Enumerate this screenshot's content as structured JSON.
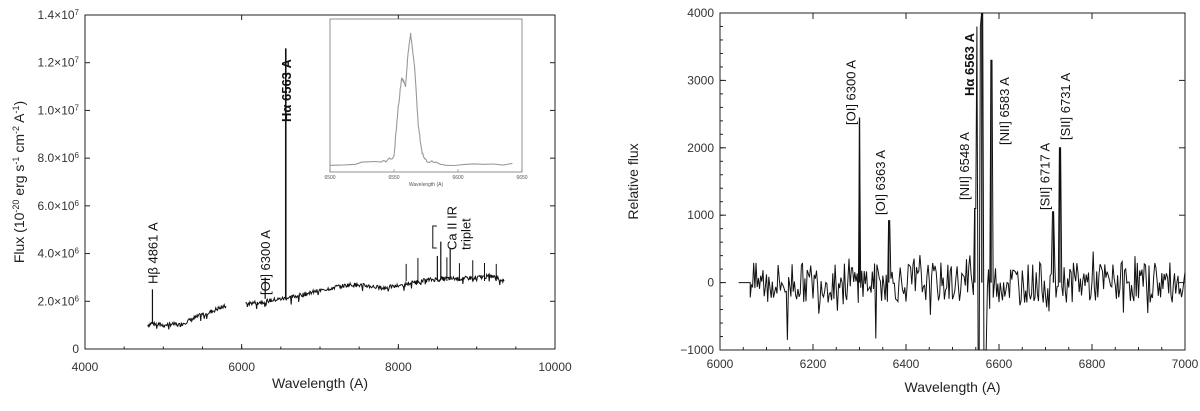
{
  "chart_data": [
    {
      "type": "line",
      "title": "",
      "xlabel": "Wavelength (A)",
      "ylabel": "Flux (10^-20 erg s^-1 cm^-2 A^-1)",
      "ylabel_parts": {
        "a": "Flux (10",
        "b": "-20",
        "c": " erg s",
        "d": "-1",
        "e": " cm",
        "f": "-2",
        "g": " A",
        "h": "-1",
        "i": ")"
      },
      "xlim": [
        4000,
        10000
      ],
      "ylim": [
        0,
        14000000
      ],
      "xticks": [
        4000,
        6000,
        8000,
        10000
      ],
      "xtick_labels": [
        "4000",
        "6000",
        "8000",
        "10000"
      ],
      "yticks": [
        0,
        2000000,
        4000000,
        6000000,
        8000000,
        10000000,
        12000000,
        14000000
      ],
      "ytick_labels": [
        {
          "m": "0",
          "e": ""
        },
        {
          "m": "2.0×10",
          "e": "6"
        },
        {
          "m": "4.0×10",
          "e": "6"
        },
        {
          "m": "6.0×10",
          "e": "6"
        },
        {
          "m": "8.0×10",
          "e": "6"
        },
        {
          "m": "1.0×10",
          "e": "7"
        },
        {
          "m": "1.2×10",
          "e": "7"
        },
        {
          "m": "1.4×10",
          "e": "7"
        }
      ],
      "series": [
        {
          "segments": [
            {
              "x": [
                4800,
                4860,
                4900,
                5000,
                5100,
                5200,
                5300,
                5400,
                5500,
                5600,
                5700,
                5800
              ],
              "y": [
                1000000,
                1100000,
                1050000,
                1000000,
                1050000,
                1000000,
                1150000,
                1300000,
                1450000,
                1550000,
                1700000,
                1800000
              ]
            },
            {
              "x": [
                6050,
                6200,
                6400,
                6600,
                6800,
                7000,
                7200,
                7400,
                7600,
                7800,
                8000,
                8200,
                8400,
                8600,
                8800,
                9000,
                9200,
                9350
              ],
              "y": [
                1900000,
                1950000,
                2050000,
                2150000,
                2300000,
                2450000,
                2600000,
                2700000,
                2650000,
                2550000,
                2650000,
                2800000,
                2900000,
                2950000,
                2950000,
                3000000,
                3050000,
                2850000
              ]
            }
          ]
        }
      ],
      "annotations": [
        {
          "text": "Hβ 4861 A",
          "x": 4861,
          "y": 2500000
        },
        {
          "text": "[OI] 6300 A",
          "x": 6300,
          "y": 2500000
        },
        {
          "text": "Hα 6563 A",
          "x": 6563,
          "y": 12600000
        },
        {
          "text": "Ca II IR",
          "x": 8500,
          "y": 4800000
        },
        {
          "text": "triplet",
          "x": 8500,
          "y": 4800000
        }
      ],
      "emission_peaks": [
        {
          "x": 4861,
          "y": 2500000
        },
        {
          "x": 6300,
          "y": 3000000
        },
        {
          "x": 6563,
          "y": 12600000
        },
        {
          "x": 8498,
          "y": 3900000
        },
        {
          "x": 8542,
          "y": 4500000
        },
        {
          "x": 8662,
          "y": 4200000
        }
      ],
      "inset": {
        "type": "line",
        "xlabel": "Wavelength (A)",
        "xlim": [
          6500,
          6650
        ],
        "xticks": [
          6500,
          6550,
          6600,
          6650
        ],
        "xtick_labels": [
          "6500",
          "6550",
          "6600",
          "6650"
        ],
        "x": [
          6500,
          6540,
          6550,
          6553,
          6556,
          6559,
          6561,
          6563,
          6566,
          6569,
          6572,
          6576,
          6590,
          6650
        ],
        "y": [
          0.05,
          0.06,
          0.1,
          0.4,
          0.62,
          0.56,
          0.78,
          0.9,
          0.7,
          0.3,
          0.12,
          0.07,
          0.05,
          0.05
        ]
      }
    },
    {
      "type": "line",
      "title": "",
      "xlabel": "Wavelength (A)",
      "ylabel": "Relative flux",
      "xlim": [
        6000,
        7000
      ],
      "ylim": [
        -1000,
        4000
      ],
      "xticks": [
        6000,
        6200,
        6400,
        6600,
        6800,
        7000
      ],
      "xtick_labels": [
        "6000",
        "6200",
        "6400",
        "6600",
        "6800",
        "7000"
      ],
      "yticks": [
        -1000,
        0,
        1000,
        2000,
        3000,
        4000
      ],
      "ytick_labels": [
        "−1000",
        "0",
        "1000",
        "2000",
        "3000",
        "4000"
      ],
      "series": [
        {
          "baseline_start": 6065,
          "baseline_end": 7000,
          "peaks": [
            {
              "x": 6300,
              "y": 2450
            },
            {
              "x": 6363,
              "y": 920
            },
            {
              "x": 6548,
              "y": 1100
            },
            {
              "x": 6563,
              "y": 4000
            },
            {
              "x": 6583,
              "y": 3300
            },
            {
              "x": 6717,
              "y": 1050
            },
            {
              "x": 6731,
              "y": 2000
            }
          ],
          "troughs": [
            {
              "x": 6560,
              "y": -1000
            },
            {
              "x": 6145,
              "y": -850
            },
            {
              "x": 6335,
              "y": -830
            }
          ]
        }
      ],
      "annotations": [
        {
          "text": "[OI] 6300 A",
          "x": 6300
        },
        {
          "text": "[OI] 6363 A",
          "x": 6363
        },
        {
          "text": "[NII] 6548 A",
          "x": 6548
        },
        {
          "text": "Hα 6563 A",
          "x": 6563
        },
        {
          "text": "[NII] 6583 A",
          "x": 6583
        },
        {
          "text": "[SII] 6717 A",
          "x": 6717
        },
        {
          "text": "[SII] 6731 A",
          "x": 6731
        }
      ]
    }
  ]
}
